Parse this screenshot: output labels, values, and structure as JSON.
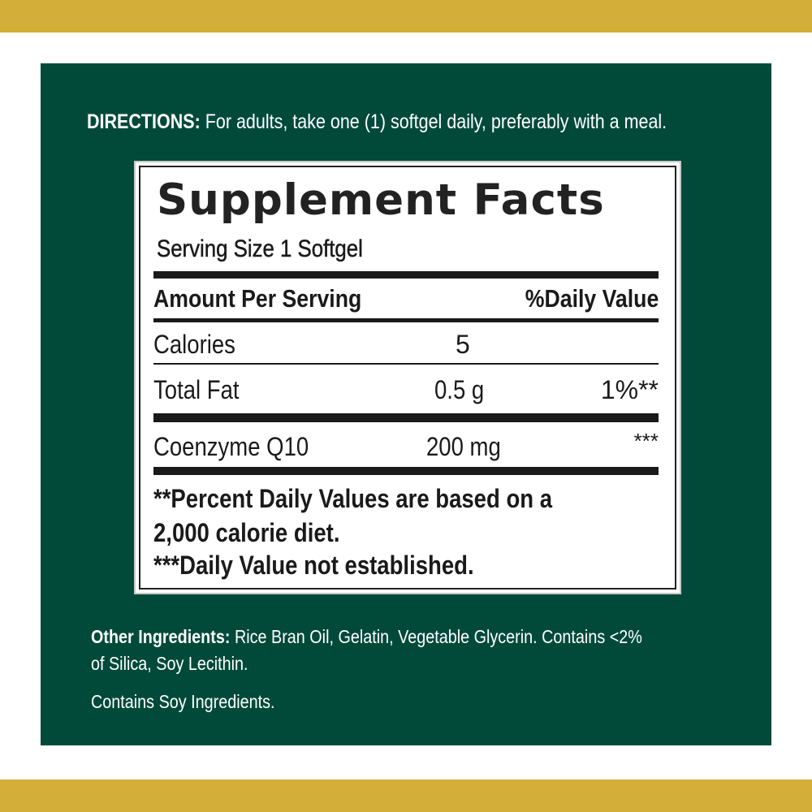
{
  "colors": {
    "gold": "#d3ae38",
    "panel": "#014a3a"
  },
  "directions": {
    "label": "DIRECTIONS:",
    "text": "For adults, take one (1) softgel daily, preferably with a meal."
  },
  "facts": {
    "title": "Supplement Facts",
    "serving_size": "Serving Size 1 Softgel",
    "header_left": "Amount Per Serving",
    "header_right": "%Daily Value",
    "rows": [
      {
        "name": "Calories",
        "amount": "5",
        "dv": ""
      },
      {
        "name": "Total Fat",
        "amount": "0.5 g",
        "dv": "1%**"
      },
      {
        "name": "Coenzyme Q10",
        "amount": "200 mg",
        "dv": "***"
      }
    ],
    "footnote1a": "**Percent Daily Values are based on a",
    "footnote1b": "2,000 calorie diet.",
    "footnote2": "***Daily Value not established."
  },
  "other": {
    "label": "Other Ingredients:",
    "text": "Rice Bran Oil, Gelatin, Vegetable Glycerin. Contains <2%",
    "text2": "of Silica, Soy Lecithin.",
    "soy": "Contains Soy Ingredients."
  }
}
